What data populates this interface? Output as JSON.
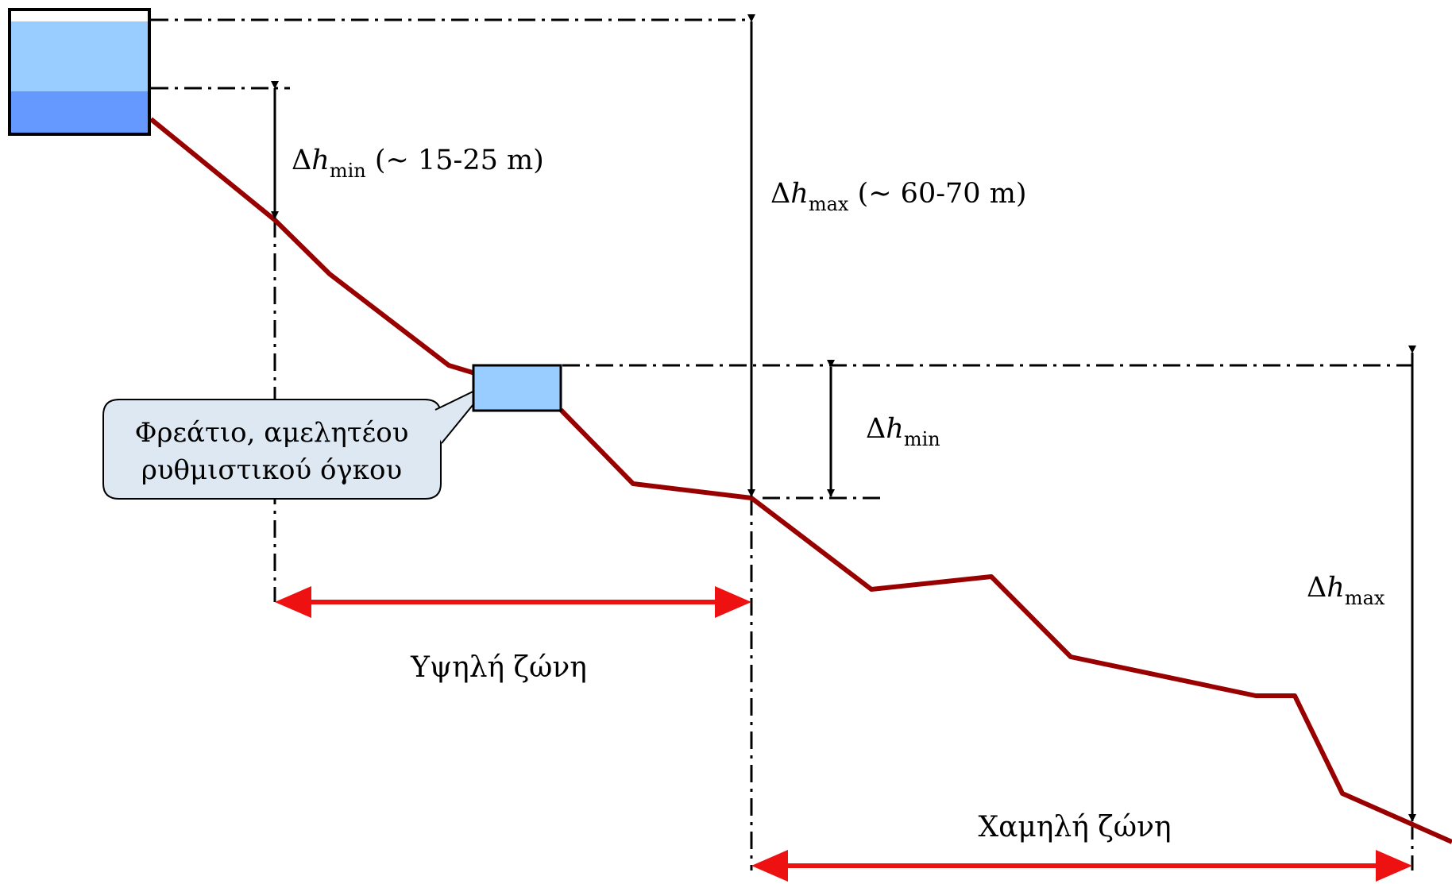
{
  "colors": {
    "terrain": "#990000",
    "zone_arrow": "#ee1111",
    "tank_light": "#99ccff",
    "tank_dark": "#6699ff",
    "callout_fill": "#dde8f2",
    "line": "#000000"
  },
  "labels": {
    "dh_min_top": {
      "symbol": "Δ",
      "var": "h",
      "sub": "min",
      "range": " (~ 15-25 m)"
    },
    "dh_max_top": {
      "symbol": "Δ",
      "var": "h",
      "sub": "max",
      "range": " (~ 60-70 m)"
    },
    "dh_min_mid": {
      "symbol": "Δ",
      "var": "h",
      "sub": "min"
    },
    "dh_max_right": {
      "symbol": "Δ",
      "var": "h",
      "sub": "max"
    }
  },
  "callout": {
    "line1": "Φρεάτιο, αμελητέου",
    "line2": "ρυθμιστικού όγκου"
  },
  "zones": {
    "high": "Υψηλή ζώνη",
    "low": "Χαμηλή ζώνη"
  }
}
